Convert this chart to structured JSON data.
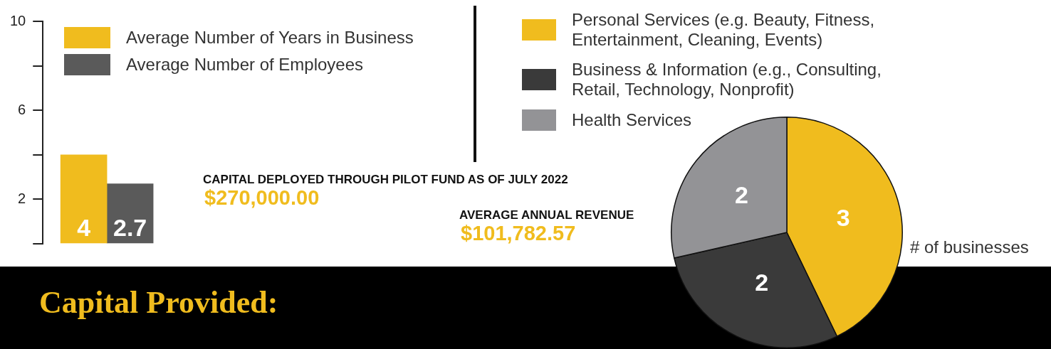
{
  "chart_data": [
    {
      "type": "bar",
      "categories": [
        null
      ],
      "series": [
        {
          "name": "Average Number of Years in Business",
          "color": "#f0bc1e",
          "values": [
            4
          ]
        },
        {
          "name": "Average Number of Employees",
          "color": "#5a5a5a",
          "values": [
            2.7
          ]
        }
      ],
      "ylim": [
        0,
        10
      ],
      "yticks": [
        {
          "value": 0,
          "label": null
        },
        2,
        {
          "value": 4,
          "label": null
        },
        6,
        {
          "value": 8,
          "label": null
        },
        10
      ],
      "grid": false,
      "legend": "top right",
      "data_labels": true
    },
    {
      "type": "pie",
      "categories": [
        "Personal Services (e.g. Beauty, Fitness, Entertainment, Cleaning, Events)",
        "Business & Information (e.g., Consulting, Retail, Technology, Nonprofit)",
        "Health Services"
      ],
      "values": [
        3,
        2,
        2
      ],
      "colors": [
        "#f0bc1e",
        "#3a3a3a",
        "#939396"
      ],
      "legend": "top left",
      "data_labels": true,
      "annotations": [
        "# of businesses"
      ]
    },
    {
      "type": "other",
      "title": "Capital Provided:",
      "annotations": [
        "CAPITAL DEPLOYED THROUGH PILOT FUND AS OF JULY 2022",
        "$270,000.00",
        "AVERAGE ANNUAL REVENUE",
        "$101,782.57"
      ]
    }
  ]
}
